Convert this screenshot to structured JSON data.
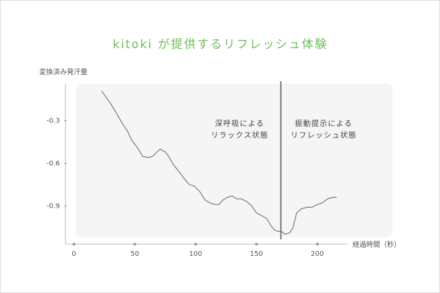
{
  "chart_data": {
    "type": "line",
    "title": "kitoki が提供するリフレッシュ体験",
    "y_label": "変換済み発汗量",
    "x_label": "経過時間（秒）",
    "x": [
      22.7,
      29.5,
      35.2,
      39.8,
      43.8,
      47.7,
      52.3,
      56.3,
      60.8,
      64.8,
      68.2,
      71.0,
      75.0,
      77.8,
      81.8,
      86.4,
      90.9,
      94.9,
      98.9,
      103.4,
      108.0,
      111.9,
      115.9,
      119.3,
      122.2,
      126.1,
      130.1,
      133.5,
      137.5,
      142.0,
      146.0,
      150.0,
      154.5,
      158.5,
      161.9,
      164.8,
      167.6,
      170.5,
      173.3,
      177.3,
      180.1,
      183.0,
      186.9,
      191.5,
      195.5,
      200.0,
      204.0,
      208.5,
      212.5,
      215.9
    ],
    "series": [
      {
        "color": "#777777",
        "values": [
          -0.09,
          -0.17,
          -0.25,
          -0.32,
          -0.37,
          -0.44,
          -0.49,
          -0.55,
          -0.56,
          -0.55,
          -0.52,
          -0.5,
          -0.52,
          -0.55,
          -0.61,
          -0.66,
          -0.71,
          -0.75,
          -0.76,
          -0.8,
          -0.86,
          -0.88,
          -0.89,
          -0.89,
          -0.86,
          -0.84,
          -0.83,
          -0.85,
          -0.85,
          -0.87,
          -0.9,
          -0.95,
          -0.97,
          -0.99,
          -1.04,
          -1.07,
          -1.08,
          -1.08,
          -1.1,
          -1.09,
          -1.05,
          -0.95,
          -0.92,
          -0.91,
          -0.91,
          -0.89,
          -0.88,
          -0.85,
          -0.84,
          -0.84
        ]
      }
    ],
    "divider_x": 170,
    "annotations": [
      [
        "深呼吸による",
        "リラックス状態"
      ],
      [
        "振動提示による",
        "リフレッシュ状態"
      ]
    ],
    "xlim": [
      -7,
      225
    ],
    "ylim": [
      -1.17,
      -0.04
    ],
    "xticks": [
      0,
      50,
      100,
      150,
      200
    ],
    "yticks": [
      -0.3,
      -0.6,
      -0.9
    ]
  }
}
